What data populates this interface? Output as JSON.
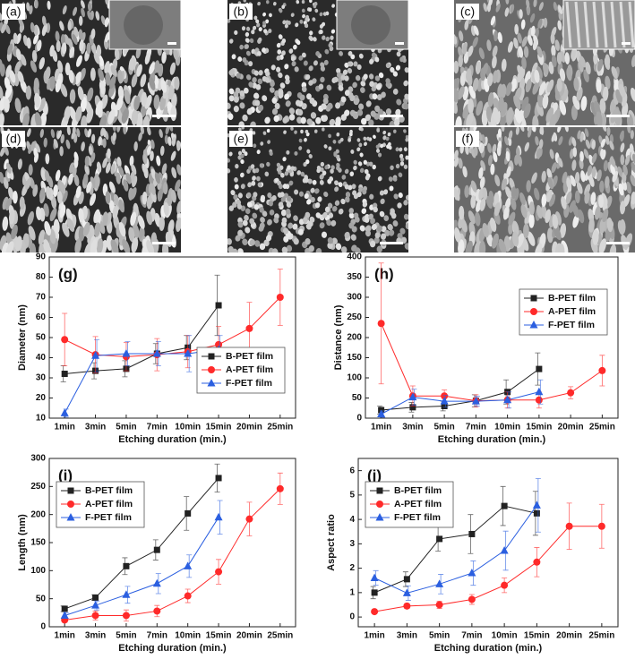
{
  "images": [
    {
      "label": "(a)"
    },
    {
      "label": "(b)"
    },
    {
      "label": "(c)"
    },
    {
      "label": "(d)"
    },
    {
      "label": "(e)"
    },
    {
      "label": "(f)"
    }
  ],
  "chart_data": [
    {
      "type": "line",
      "label": "(g)",
      "ylabel": "Diameter (nm)",
      "xlabel": "Etching duration (min.)",
      "categories": [
        "1min",
        "3min",
        "5min",
        "7min",
        "10min",
        "15min",
        "20min",
        "25min"
      ],
      "ylim": [
        10,
        90
      ],
      "yticks": [
        10,
        20,
        30,
        40,
        50,
        60,
        70,
        80,
        90
      ],
      "legend": "lower right",
      "series": [
        {
          "name": "B-PET film",
          "color": "#222222",
          "marker": "square",
          "values": [
            32,
            33.5,
            34.5,
            42,
            45,
            66,
            null,
            null
          ],
          "errors": [
            4,
            4,
            4,
            5,
            6,
            15,
            null,
            null
          ]
        },
        {
          "name": "A-PET film",
          "color": "#ff2a2a",
          "marker": "circle",
          "values": [
            49,
            41.5,
            40.5,
            41.5,
            43,
            46.5,
            54.5,
            70
          ],
          "errors": [
            13,
            9,
            7,
            8,
            8,
            9,
            13,
            14
          ]
        },
        {
          "name": "F-PET film",
          "color": "#2b5fe0",
          "marker": "triangle",
          "values": [
            12.5,
            41,
            42,
            42,
            42,
            44,
            null,
            null
          ],
          "errors": [
            2,
            8,
            6,
            6,
            9,
            7,
            null,
            null
          ]
        }
      ]
    },
    {
      "type": "line",
      "label": "(h)",
      "ylabel": "Distance (nm)",
      "xlabel": "Etching duration (min.)",
      "categories": [
        "1min",
        "3min",
        "5min",
        "7min",
        "10min",
        "15min",
        "20min",
        "25min"
      ],
      "ylim": [
        0,
        400
      ],
      "yticks": [
        0,
        50,
        100,
        150,
        200,
        250,
        300,
        350,
        400
      ],
      "legend": "upper right",
      "series": [
        {
          "name": "B-PET film",
          "color": "#222222",
          "marker": "square",
          "values": [
            20,
            27,
            30,
            43,
            65,
            122,
            null,
            null
          ],
          "errors": [
            10,
            12,
            12,
            15,
            30,
            40,
            null,
            null
          ]
        },
        {
          "name": "A-PET film",
          "color": "#ff2a2a",
          "marker": "circle",
          "values": [
            235,
            55,
            55,
            43,
            45,
            45,
            63,
            118
          ],
          "errors": [
            150,
            25,
            15,
            15,
            20,
            20,
            15,
            38
          ]
        },
        {
          "name": "F-PET film",
          "color": "#2b5fe0",
          "marker": "triangle",
          "values": [
            10,
            52,
            42,
            42,
            45,
            65,
            null,
            null
          ],
          "errors": [
            8,
            20,
            15,
            12,
            20,
            30,
            null,
            null
          ]
        }
      ]
    },
    {
      "type": "line",
      "label": "(i)",
      "ylabel": "Length (nm)",
      "xlabel": "Etching duration (min.)",
      "categories": [
        "1min",
        "3min",
        "5min",
        "7min",
        "10min",
        "15min",
        "20min",
        "25min"
      ],
      "ylim": [
        0,
        300
      ],
      "yticks": [
        0,
        50,
        100,
        150,
        200,
        250,
        300
      ],
      "legend": "upper left",
      "series": [
        {
          "name": "B-PET film",
          "color": "#222222",
          "marker": "square",
          "values": [
            32,
            52,
            108,
            137,
            202,
            265,
            null,
            null
          ],
          "errors": [
            5,
            5,
            15,
            18,
            30,
            25,
            null,
            null
          ]
        },
        {
          "name": "A-PET film",
          "color": "#ff2a2a",
          "marker": "circle",
          "values": [
            12,
            20,
            20,
            28,
            55,
            98,
            192,
            246
          ],
          "errors": [
            4,
            8,
            10,
            10,
            12,
            22,
            30,
            28
          ]
        },
        {
          "name": "F-PET film",
          "color": "#2b5fe0",
          "marker": "triangle",
          "values": [
            20,
            38,
            57,
            77,
            108,
            195,
            null,
            null
          ],
          "errors": [
            5,
            8,
            15,
            18,
            20,
            30,
            null,
            null
          ]
        }
      ]
    },
    {
      "type": "line",
      "label": "(j)",
      "ylabel": "Aspect ratio",
      "xlabel": "Etching duration (min.)",
      "categories": [
        "1min",
        "3min",
        "5min",
        "7min",
        "10min",
        "15min",
        "20min",
        "25min"
      ],
      "ylim": [
        -0.4,
        6.5
      ],
      "yticks": [
        0,
        1,
        2,
        3,
        4,
        5,
        6
      ],
      "legend": "upper left",
      "series": [
        {
          "name": "B-PET film",
          "color": "#222222",
          "marker": "square",
          "values": [
            1.0,
            1.55,
            3.2,
            3.4,
            4.55,
            4.25,
            null,
            null
          ],
          "errors": [
            0.25,
            0.3,
            0.5,
            0.8,
            0.8,
            0.9,
            null,
            null
          ]
        },
        {
          "name": "A-PET film",
          "color": "#ff2a2a",
          "marker": "circle",
          "values": [
            0.22,
            0.45,
            0.5,
            0.72,
            1.3,
            2.25,
            3.72,
            3.72
          ],
          "errors": [
            0.05,
            0.1,
            0.15,
            0.2,
            0.3,
            0.6,
            0.95,
            0.9
          ]
        },
        {
          "name": "F-PET film",
          "color": "#2b5fe0",
          "marker": "triangle",
          "values": [
            1.6,
            0.98,
            1.35,
            1.8,
            2.72,
            4.58,
            null,
            null
          ],
          "errors": [
            0.3,
            0.3,
            0.4,
            0.5,
            0.8,
            1.1,
            null,
            null
          ]
        }
      ]
    }
  ]
}
